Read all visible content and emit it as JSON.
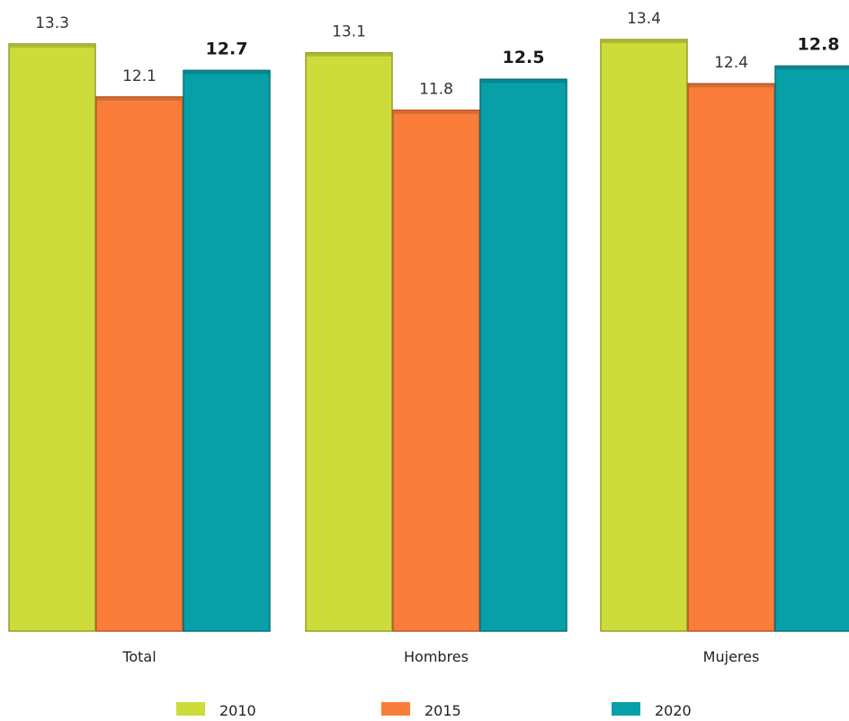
{
  "chart_data": {
    "type": "bar",
    "categories": [
      "Total",
      "Hombres",
      "Mujeres"
    ],
    "series": [
      {
        "name": "2010",
        "color": "#cddc3a",
        "values": [
          13.3,
          13.1,
          13.4
        ],
        "label_bold": false
      },
      {
        "name": "2015",
        "color": "#fa7d3a",
        "values": [
          12.1,
          11.8,
          12.4
        ],
        "label_bold": false
      },
      {
        "name": "2020",
        "color": "#079fa8",
        "values": [
          12.7,
          12.5,
          12.8
        ],
        "label_bold": true
      }
    ],
    "value_labels": [
      [
        "13.3",
        "12.1",
        "12.7"
      ],
      [
        "13.1",
        "11.8",
        "12.5"
      ],
      [
        "13.4",
        "12.4",
        "12.8"
      ]
    ],
    "ylim": [
      0,
      14
    ],
    "grid": false,
    "legend_position": "bottom"
  }
}
